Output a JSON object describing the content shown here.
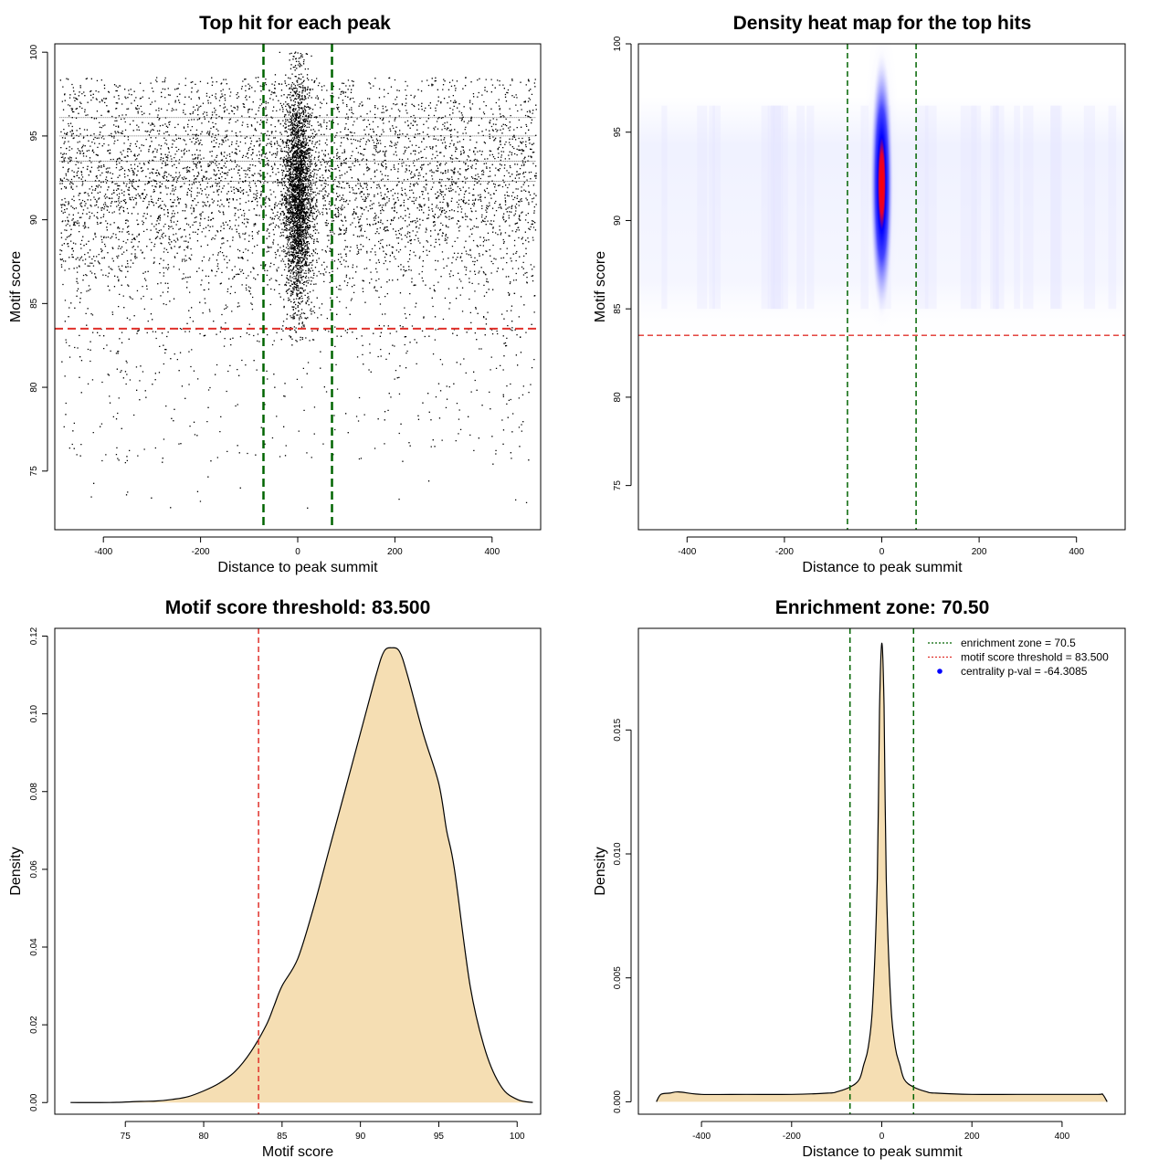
{
  "chart_data": [
    {
      "type": "scatter",
      "title": "Top hit for each peak",
      "xlabel": "Distance to peak summit",
      "ylabel": "Motif score",
      "xlim": [
        -500,
        500
      ],
      "ylim": [
        71.5,
        100.5
      ],
      "xticks": [
        -400,
        -200,
        0,
        200,
        400
      ],
      "yticks": [
        75,
        80,
        85,
        90,
        95,
        100
      ],
      "vlines": [
        -70.5,
        70.5
      ],
      "hline": 83.5,
      "series": [
        {
          "values": [
            {
              "x_range": [
                -500,
                500
              ],
              "y_range": [
                83.5,
                98.5
              ],
              "density": "dense background"
            },
            {
              "x_range": [
                -70,
                70
              ],
              "y_range": [
                83.5,
                100
              ],
              "density": "very dense central band"
            },
            {
              "x_range": [
                -500,
                500
              ],
              "y_range": [
                72.5,
                83.5
              ],
              "density": "sparse below threshold"
            }
          ]
        }
      ],
      "colors": {
        "points": "#000000",
        "vlines": "#006400",
        "hline": "#e0302a"
      }
    },
    {
      "type": "heatmap",
      "title": "Density heat map for the top hits",
      "xlabel": "Distance to peak summit",
      "ylabel": "Motif score",
      "xlim": [
        -500,
        500
      ],
      "ylim": [
        72.5,
        100
      ],
      "xticks": [
        -400,
        -200,
        0,
        200,
        400
      ],
      "yticks": [
        75,
        80,
        85,
        90,
        95,
        100
      ],
      "vlines": [
        -70.5,
        70.5
      ],
      "hline": 83.5,
      "peak": {
        "x": 0,
        "y": 92.5
      },
      "colors": {
        "low": "#ffffff",
        "mid": "#0000ff",
        "high": "#ff0000",
        "vlines": "#006400",
        "hline": "#e0302a"
      }
    },
    {
      "type": "area",
      "title": "Motif score threshold: 83.500",
      "xlabel": "Motif score",
      "ylabel": "Density",
      "xlim": [
        70.5,
        101.5
      ],
      "ylim": [
        -0.003,
        0.122
      ],
      "xticks": [
        75,
        80,
        85,
        90,
        95,
        100
      ],
      "yticks": [
        0.0,
        0.02,
        0.04,
        0.06,
        0.08,
        0.1,
        0.12
      ],
      "ytick_labels": [
        "0.00",
        "0.02",
        "0.04",
        "0.06",
        "0.08",
        "0.10",
        "0.12"
      ],
      "vline": 83.5,
      "x": [
        71.5,
        74,
        76,
        77,
        78,
        79,
        80,
        81,
        82,
        83,
        84,
        84.5,
        85,
        86,
        87,
        88,
        89,
        90,
        91,
        91.5,
        92,
        92.5,
        93,
        94,
        95,
        95.5,
        96,
        97,
        98,
        99,
        100,
        101
      ],
      "values": [
        0.0,
        0.0,
        0.0003,
        0.0004,
        0.0008,
        0.0015,
        0.003,
        0.005,
        0.008,
        0.013,
        0.02,
        0.025,
        0.03,
        0.037,
        0.05,
        0.065,
        0.08,
        0.095,
        0.11,
        0.116,
        0.117,
        0.116,
        0.11,
        0.095,
        0.082,
        0.07,
        0.06,
        0.03,
        0.013,
        0.004,
        0.0008,
        0.0
      ],
      "colors": {
        "fill": "#f5deb3",
        "line": "#000000",
        "vline": "#e0302a"
      }
    },
    {
      "type": "area",
      "title": "Enrichment zone: 70.50",
      "xlabel": "Distance to peak summit",
      "ylabel": "Density",
      "xlim": [
        -540,
        540
      ],
      "ylim": [
        -0.0005,
        0.0191
      ],
      "xticks": [
        -400,
        -200,
        0,
        200,
        400
      ],
      "yticks": [
        0.0,
        0.005,
        0.01,
        0.015
      ],
      "ytick_labels": [
        "0.000",
        "0.005",
        "0.010",
        "0.015"
      ],
      "vlines": [
        -70.5,
        70.5
      ],
      "x": [
        -500,
        -490,
        -470,
        -450,
        -400,
        -300,
        -200,
        -120,
        -100,
        -70,
        -50,
        -40,
        -30,
        -20,
        -10,
        -5,
        0,
        5,
        10,
        20,
        30,
        40,
        50,
        70,
        100,
        120,
        200,
        300,
        400,
        480,
        490,
        500
      ],
      "values": [
        0.0,
        0.0003,
        0.00035,
        0.0004,
        0.0003,
        0.0003,
        0.0003,
        0.00035,
        0.0004,
        0.0006,
        0.0009,
        0.0015,
        0.0022,
        0.004,
        0.009,
        0.0158,
        0.0185,
        0.016,
        0.009,
        0.004,
        0.0022,
        0.0015,
        0.0009,
        0.0006,
        0.0004,
        0.00035,
        0.0003,
        0.0003,
        0.0003,
        0.0003,
        0.0003,
        0.0
      ],
      "legend": {
        "placement": "top-right",
        "entries": [
          {
            "label": "enrichment zone = 70.5",
            "style": "dotted-line",
            "color": "#006400"
          },
          {
            "label": "motif score threshold = 83.500",
            "style": "dotted-line",
            "color": "#e0302a"
          },
          {
            "label": "centrality p-val = -64.3085",
            "style": "point",
            "color": "#0000ff"
          }
        ]
      },
      "colors": {
        "fill": "#f5deb3",
        "line": "#000000",
        "vlines": "#006400"
      }
    }
  ]
}
